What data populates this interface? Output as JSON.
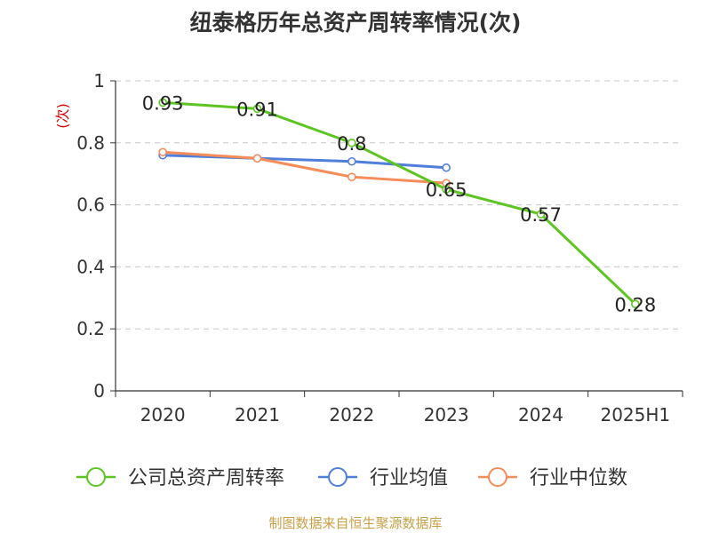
{
  "title": "纽泰格历年总资产周转率情况(次)",
  "source": "制图数据来自恒生聚源数据库",
  "colors": {
    "company": "#5ec422",
    "industry_avg": "#4f7fdb",
    "industry_median": "#f58c5a",
    "ylabel": "#d40000",
    "source": "#c8a046"
  },
  "chart_data": {
    "type": "line",
    "ylabel": "(次)",
    "ylim": [
      0,
      1
    ],
    "yticks": [
      0,
      0.2,
      0.4,
      0.6,
      0.8,
      1
    ],
    "ytick_labels": [
      "0",
      "0.2",
      "0.4",
      "0.6",
      "0.8",
      "1"
    ],
    "categories": [
      "2020",
      "2021",
      "2022",
      "2023",
      "2024",
      "2025H1"
    ],
    "grid": true,
    "legend_position": "bottom",
    "series": [
      {
        "name": "公司总资产周转率",
        "values": [
          0.93,
          0.91,
          0.8,
          0.65,
          0.57,
          0.28
        ],
        "labels": [
          "0.93",
          "0.91",
          "0.8",
          "0.65",
          "0.57",
          "0.28"
        ],
        "color_key": "company"
      },
      {
        "name": "行业均值",
        "values": [
          0.76,
          0.75,
          0.74,
          0.72,
          null,
          null
        ],
        "color_key": "industry_avg"
      },
      {
        "name": "行业中位数",
        "values": [
          0.77,
          0.75,
          0.69,
          0.67,
          null,
          null
        ],
        "color_key": "industry_median"
      }
    ]
  }
}
